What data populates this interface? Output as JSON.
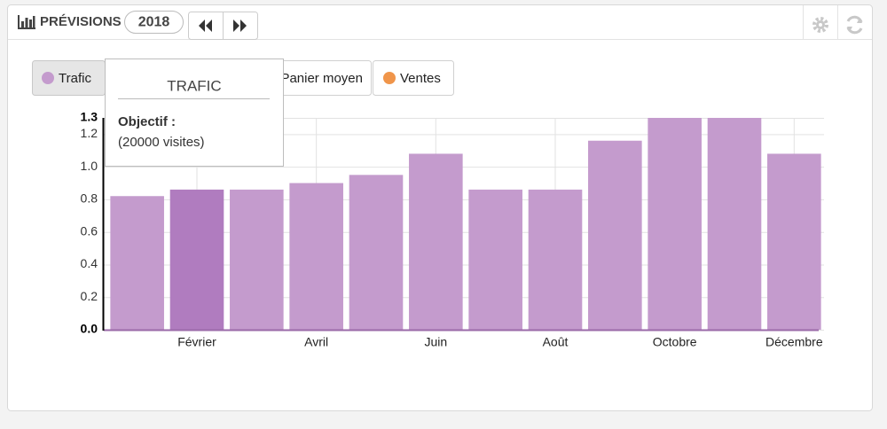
{
  "header": {
    "title": "PRÉVISIONS",
    "year": "2018"
  },
  "filters": [
    {
      "label": "Panier moyen"
    },
    {
      "label": "Ventes",
      "color": "#f0954a"
    }
  ],
  "tooltip": {
    "title": "TRAFIC",
    "label": "Objectif :",
    "text": "(20000 visites)"
  },
  "chart_data": {
    "type": "bar",
    "categories": [
      null,
      "Février",
      null,
      "Avril",
      null,
      "Juin",
      null,
      "Août",
      null,
      "Octobre",
      null,
      "Décembre"
    ],
    "series": [
      {
        "name": "Trafic",
        "color": "#c49bcd",
        "values": [
          0.82,
          0.86,
          0.86,
          0.9,
          0.95,
          1.08,
          0.86,
          0.86,
          1.16,
          1.3,
          1.3,
          1.08
        ]
      }
    ],
    "highlight_index": 1,
    "highlight_color": "#b07cbf",
    "ylim": [
      0,
      1.3
    ],
    "yticks": [
      {
        "value": 0,
        "label": "0.0"
      },
      0.2,
      0.4,
      0.6,
      0.8,
      {
        "value": 1,
        "label": "1.0"
      },
      1.2,
      1.3
    ],
    "grid": true
  }
}
